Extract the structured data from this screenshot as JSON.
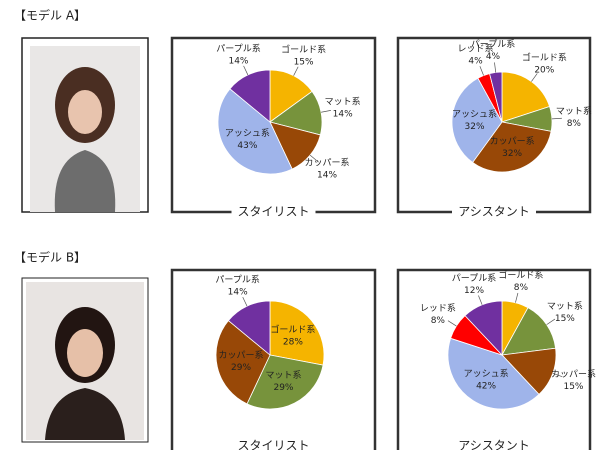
{
  "models": [
    {
      "label": "【モデル A】"
    },
    {
      "label": "【モデル B】"
    }
  ],
  "chart_data": [
    {
      "type": "pie",
      "title": "スタイリスト",
      "categories": [
        "ゴールド系",
        "マット系",
        "カッパー系",
        "アッシュ系",
        "パープル系"
      ],
      "values": [
        15,
        14,
        14,
        43,
        14
      ],
      "value_labels": [
        "15%",
        "14%",
        "14%",
        "43%",
        "14%"
      ],
      "colors": [
        "#f5b400",
        "#77933c",
        "#984807",
        "#9fb4ea",
        "#7030a0"
      ]
    },
    {
      "type": "pie",
      "title": "アシスタント",
      "categories": [
        "ゴールド系",
        "マット系",
        "カッパー系",
        "アッシュ系",
        "レッド系",
        "パープル系"
      ],
      "values": [
        20,
        8,
        32,
        32,
        4,
        4
      ],
      "value_labels": [
        "20%",
        "8%",
        "32%",
        "32%",
        "4%",
        "4%"
      ],
      "colors": [
        "#f5b400",
        "#77933c",
        "#984807",
        "#9fb4ea",
        "#ff0000",
        "#7030a0"
      ]
    },
    {
      "type": "pie",
      "title": "スタイリスト",
      "categories": [
        "ゴールド系",
        "マット系",
        "カッパー系",
        "パープル系"
      ],
      "values": [
        28,
        29,
        29,
        14
      ],
      "value_labels": [
        "28%",
        "29%",
        "29%",
        "14%"
      ],
      "colors": [
        "#f5b400",
        "#77933c",
        "#984807",
        "#7030a0"
      ]
    },
    {
      "type": "pie",
      "title": "アシスタント",
      "categories": [
        "ゴールド系",
        "マット系",
        "カッパー系",
        "アッシュ系",
        "レッド系",
        "パープル系"
      ],
      "values": [
        8,
        15,
        15,
        42,
        8,
        12
      ],
      "value_labels": [
        "8%",
        "15%",
        "15%",
        "42%",
        "8%",
        "12%"
      ],
      "colors": [
        "#f5b400",
        "#77933c",
        "#984807",
        "#9fb4ea",
        "#ff0000",
        "#7030a0"
      ]
    }
  ]
}
